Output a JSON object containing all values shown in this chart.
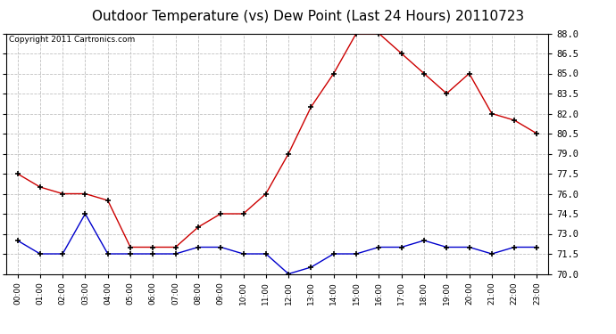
{
  "title": "Outdoor Temperature (vs) Dew Point (Last 24 Hours) 20110723",
  "copyright_text": "Copyright 2011 Cartronics.com",
  "hours": [
    "00:00",
    "01:00",
    "02:00",
    "03:00",
    "04:00",
    "05:00",
    "06:00",
    "07:00",
    "08:00",
    "09:00",
    "10:00",
    "11:00",
    "12:00",
    "13:00",
    "14:00",
    "15:00",
    "16:00",
    "17:00",
    "18:00",
    "19:00",
    "20:00",
    "21:00",
    "22:00",
    "23:00"
  ],
  "temp_red": [
    77.5,
    76.5,
    76.0,
    76.0,
    75.5,
    72.0,
    72.0,
    72.0,
    73.5,
    74.5,
    74.5,
    76.0,
    79.0,
    82.5,
    85.0,
    88.0,
    88.0,
    86.5,
    85.0,
    83.5,
    85.0,
    82.0,
    81.5,
    80.5
  ],
  "dew_blue": [
    72.5,
    71.5,
    71.5,
    74.5,
    71.5,
    71.5,
    71.5,
    71.5,
    72.0,
    72.0,
    71.5,
    71.5,
    70.0,
    70.5,
    71.5,
    71.5,
    72.0,
    72.0,
    72.5,
    72.0,
    72.0,
    71.5,
    72.0,
    72.0
  ],
  "ylim": [
    70.0,
    88.0
  ],
  "yticks": [
    70.0,
    71.5,
    73.0,
    74.5,
    76.0,
    77.5,
    79.0,
    80.5,
    82.0,
    83.5,
    85.0,
    86.5,
    88.0
  ],
  "red_color": "#cc0000",
  "blue_color": "#0000cc",
  "grid_color": "#c0c0c0",
  "bg_color": "#ffffff",
  "title_fontsize": 11,
  "copyright_fontsize": 6.5
}
